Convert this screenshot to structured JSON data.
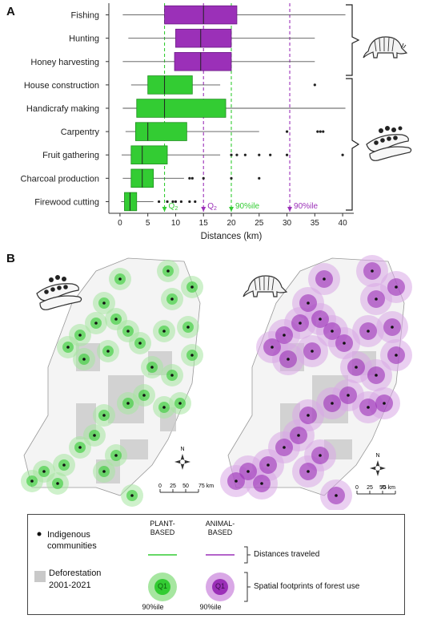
{
  "panel_a_label": "A",
  "panel_b_label": "B",
  "chart_data": {
    "type": "box",
    "xlabel": "Distances (km)",
    "xlim": [
      -2,
      42
    ],
    "x_ticks": [
      0,
      5,
      10,
      15,
      20,
      25,
      30,
      35,
      40
    ],
    "grid": false,
    "categories": [
      "Fishing",
      "Hunting",
      "Honey harvesting",
      "House construction",
      "Handicrafy making",
      "Carpentry",
      "Fruit gathering",
      "Charcoal production",
      "Firewood cutting"
    ],
    "series": [
      {
        "name": "Fishing",
        "group": "animal",
        "whisker_low": 0.5,
        "q1": 8.0,
        "median": 15.0,
        "q3": 21.0,
        "whisker_high": 40.5,
        "outliers": []
      },
      {
        "name": "Hunting",
        "group": "animal",
        "whisker_low": 1.5,
        "q1": 10.0,
        "median": 14.5,
        "q3": 20.0,
        "whisker_high": 35.0,
        "outliers": []
      },
      {
        "name": "Honey harvesting",
        "group": "animal",
        "whisker_low": 0.5,
        "q1": 9.8,
        "median": 14.5,
        "q3": 20.0,
        "whisker_high": 35.0,
        "outliers": []
      },
      {
        "name": "House construction",
        "group": "plant",
        "whisker_low": 2.0,
        "q1": 5.0,
        "median": 8.0,
        "q3": 13.0,
        "whisker_high": 18.0,
        "outliers": [
          35.0
        ]
      },
      {
        "name": "Handicrafy making",
        "group": "plant",
        "whisker_low": 0.5,
        "q1": 3.0,
        "median": 8.0,
        "q3": 19.0,
        "whisker_high": 40.5,
        "outliers": []
      },
      {
        "name": "Carpentry",
        "group": "plant",
        "whisker_low": 1.0,
        "q1": 2.8,
        "median": 5.0,
        "q3": 12.0,
        "whisker_high": 25.0,
        "outliers": [
          30.0,
          35.5,
          36.0,
          36.5
        ]
      },
      {
        "name": "Fruit gathering",
        "group": "plant",
        "whisker_low": 0.3,
        "q1": 2.0,
        "median": 4.0,
        "q3": 8.5,
        "whisker_high": 18.0,
        "outliers": [
          20.0,
          21.0,
          22.5,
          25.0,
          27.0,
          30.0,
          40.0
        ]
      },
      {
        "name": "Charcoal production",
        "group": "plant",
        "whisker_low": 0.5,
        "q1": 2.0,
        "median": 4.0,
        "q3": 6.0,
        "whisker_high": 11.5,
        "outliers": [
          12.5,
          13.0,
          15.0,
          20.0,
          25.0
        ]
      },
      {
        "name": "Firewood cutting",
        "group": "plant",
        "whisker_low": 0.2,
        "q1": 0.8,
        "median": 1.8,
        "q3": 3.0,
        "whisker_high": 6.0,
        "outliers": [
          7.0,
          8.5,
          9.5,
          10.0,
          11.0,
          12.5,
          13.5
        ]
      }
    ],
    "reference_lines": [
      {
        "label": "Q",
        "sub": "2",
        "group": "plant",
        "x": 8
      },
      {
        "label": "Q",
        "sub": "2",
        "group": "animal",
        "x": 15
      },
      {
        "label": "90%ile",
        "sub": "",
        "group": "plant",
        "x": 20
      },
      {
        "label": "90%ile",
        "sub": "",
        "group": "animal",
        "x": 30.5
      }
    ]
  },
  "maps": {
    "scale_labels": [
      "0",
      "25",
      "50",
      "75 km"
    ],
    "north_label": "N"
  },
  "legend": {
    "communities": "Indigenous\ncommunities",
    "deforestation": "Deforestation\n2001-2021",
    "plant_header": "PLANT-\nBASED",
    "animal_header": "ANIMAL-\nBASED",
    "distances": "Distances traveled",
    "footprints": "Spatial footprints of forest use",
    "circle_inner": "Q1",
    "circle_label": "90%ile"
  },
  "colors": {
    "plant": "#33cc33",
    "plant_dark": "#1e8f1e",
    "plant_light": "#a6e6a0",
    "animal": "#9b30b8",
    "animal_dark": "#6b1a85",
    "animal_light": "#d9a8e6",
    "deforestation": "#c9c9c9"
  }
}
